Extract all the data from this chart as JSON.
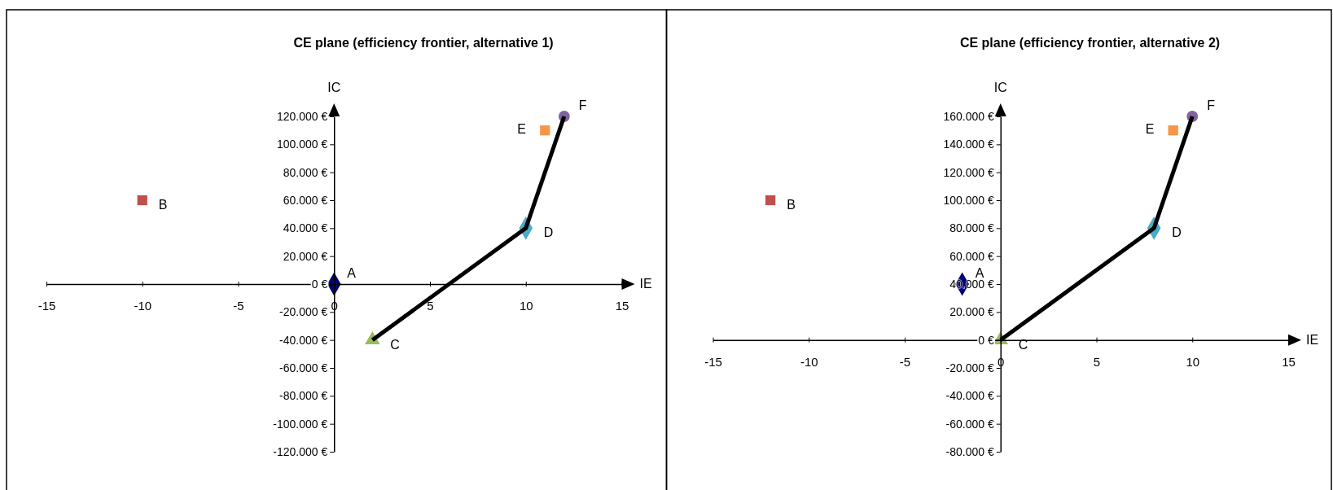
{
  "chart_data": [
    {
      "type": "scatter",
      "title": "CE plane (efficiency frontier, alternative 1)",
      "xlabel": "IE",
      "ylabel": "IC",
      "xlim": [
        -15,
        15
      ],
      "xticks": [
        -15,
        -10,
        -5,
        0,
        5,
        10,
        15
      ],
      "ylim": [
        -120000,
        120000
      ],
      "yticks": [
        {
          "value": -120000,
          "label": "-120.000 €"
        },
        {
          "value": -100000,
          "label": "-100.000 €"
        },
        {
          "value": -80000,
          "label": "-80.000 €"
        },
        {
          "value": -60000,
          "label": "-60.000 €"
        },
        {
          "value": -40000,
          "label": "-40.000 €"
        },
        {
          "value": -20000,
          "label": "-20.000 €"
        },
        {
          "value": 0,
          "label": "0 €"
        },
        {
          "value": 20000,
          "label": "20.000 €"
        },
        {
          "value": 40000,
          "label": "40.000 €"
        },
        {
          "value": 60000,
          "label": "60.000 €"
        },
        {
          "value": 80000,
          "label": "80.000 €"
        },
        {
          "value": 100000,
          "label": "100.000 €"
        },
        {
          "value": 120000,
          "label": "120.000 €"
        }
      ],
      "grid": false,
      "legend": false,
      "series": [
        {
          "type": "line",
          "color": "#000000",
          "marker": "none",
          "x": [
            2,
            10,
            12
          ],
          "values": [
            -40000,
            40000,
            120000
          ]
        },
        {
          "name": "A",
          "color": "#000080",
          "marker": "diamond",
          "x": [
            0
          ],
          "values": [
            0
          ]
        },
        {
          "name": "B",
          "color": "#c0504d",
          "marker": "square",
          "x": [
            -10
          ],
          "values": [
            60000
          ]
        },
        {
          "name": "C",
          "color": "#9bbb59",
          "marker": "triangle",
          "x": [
            2
          ],
          "values": [
            -40000
          ]
        },
        {
          "name": "D",
          "color": "#4bacc6",
          "marker": "diamond",
          "x": [
            10
          ],
          "values": [
            40000
          ]
        },
        {
          "name": "E",
          "color": "#f79646",
          "marker": "square",
          "x": [
            11
          ],
          "values": [
            110000
          ]
        },
        {
          "name": "F",
          "color": "#8064a2",
          "marker": "circle",
          "x": [
            12
          ],
          "values": [
            120000
          ]
        }
      ]
    },
    {
      "type": "scatter",
      "title": "CE plane (efficiency frontier, alternative 2)",
      "xlabel": "IE",
      "ylabel": "IC",
      "xlim": [
        -15,
        15
      ],
      "xticks": [
        -15,
        -10,
        -5,
        0,
        5,
        10,
        15
      ],
      "ylim": [
        -80000,
        160000
      ],
      "yticks": [
        {
          "value": -80000,
          "label": "-80.000 €"
        },
        {
          "value": -60000,
          "label": "-60.000 €"
        },
        {
          "value": -40000,
          "label": "-40.000 €"
        },
        {
          "value": -20000,
          "label": "-20.000 €"
        },
        {
          "value": 0,
          "label": "0 €"
        },
        {
          "value": 20000,
          "label": "20.000 €"
        },
        {
          "value": 40000,
          "label": "40.000 €"
        },
        {
          "value": 60000,
          "label": "60.000 €"
        },
        {
          "value": 80000,
          "label": "80.000 €"
        },
        {
          "value": 100000,
          "label": "100.000 €"
        },
        {
          "value": 120000,
          "label": "120.000 €"
        },
        {
          "value": 140000,
          "label": "140.000 €"
        },
        {
          "value": 160000,
          "label": "160.000 €"
        }
      ],
      "grid": false,
      "legend": false,
      "series": [
        {
          "type": "line",
          "color": "#000000",
          "marker": "none",
          "x": [
            0,
            8,
            10
          ],
          "values": [
            0,
            80000,
            160000
          ]
        },
        {
          "name": "A",
          "color": "#000080",
          "marker": "diamond",
          "x": [
            -2
          ],
          "values": [
            40000
          ]
        },
        {
          "name": "B",
          "color": "#c0504d",
          "marker": "square",
          "x": [
            -12
          ],
          "values": [
            100000
          ]
        },
        {
          "name": "C",
          "color": "#9bbb59",
          "marker": "triangle",
          "x": [
            0
          ],
          "values": [
            0
          ]
        },
        {
          "name": "D",
          "color": "#4bacc6",
          "marker": "diamond",
          "x": [
            8
          ],
          "values": [
            80000
          ]
        },
        {
          "name": "E",
          "color": "#f79646",
          "marker": "square",
          "x": [
            9
          ],
          "values": [
            150000
          ]
        },
        {
          "name": "F",
          "color": "#8064a2",
          "marker": "circle",
          "x": [
            10
          ],
          "values": [
            160000
          ]
        }
      ]
    }
  ]
}
